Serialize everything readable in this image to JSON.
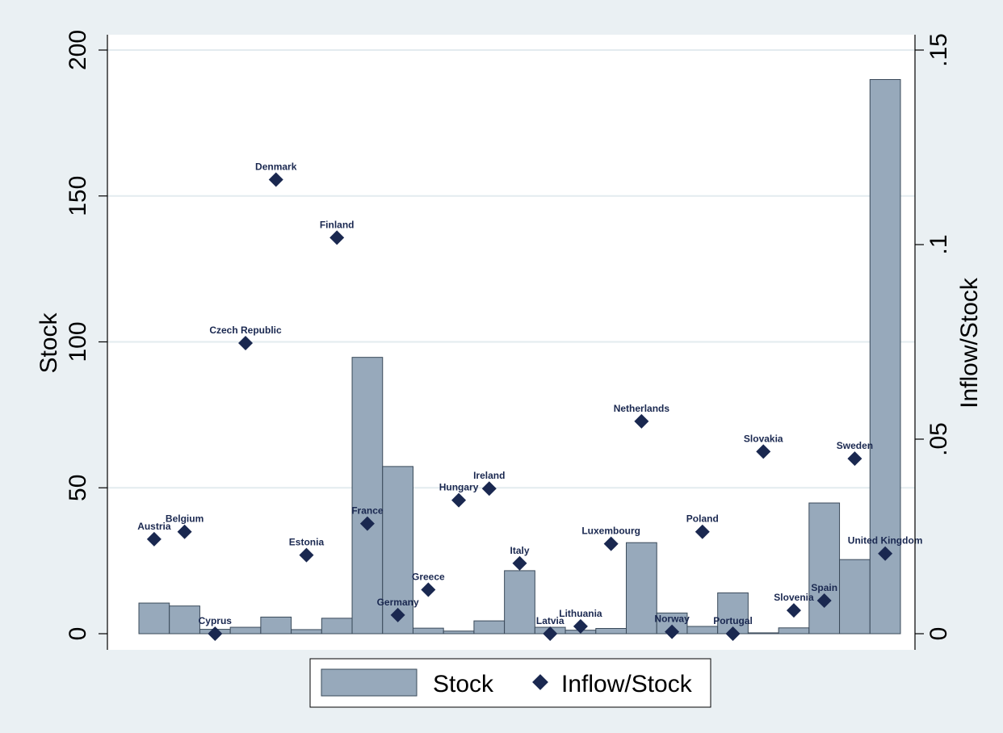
{
  "chart_data": {
    "type": "bar",
    "categories": [
      "Austria",
      "Belgium",
      "Cyprus",
      "Czech Republic",
      "Denmark",
      "Estonia",
      "Finland",
      "France",
      "Germany",
      "Greece",
      "Hungary",
      "Ireland",
      "Italy",
      "Latvia",
      "Lithuania",
      "Luxembourg",
      "Netherlands",
      "Norway",
      "Poland",
      "Portugal",
      "Slovakia",
      "Slovenia",
      "Spain",
      "Sweden",
      "United Kingdom"
    ],
    "y_left": {
      "label": "Stock",
      "ylim": [
        0,
        200
      ],
      "ticks": [
        0,
        50,
        100,
        150,
        200
      ],
      "tick_labels": [
        "0",
        "50",
        "100",
        "150",
        "200"
      ]
    },
    "y_right": {
      "label": "Inflow/Stock",
      "ylim": [
        0,
        0.15
      ],
      "ticks": [
        0,
        0.05,
        0.1,
        0.15
      ],
      "tick_labels": [
        "0",
        ".05",
        ".1",
        ".15"
      ]
    },
    "series": [
      {
        "name": "Stock",
        "type": "bar",
        "axis": "left",
        "color": "#97a9bb",
        "values": [
          10.5,
          9.5,
          1.5,
          2.2,
          5.7,
          1.4,
          5.3,
          94.7,
          57.3,
          1.9,
          0.9,
          4.4,
          21.6,
          2.2,
          1.2,
          1.8,
          31.2,
          7.1,
          2.5,
          14.0,
          0.3,
          2.0,
          44.8,
          25.4,
          189.9
        ]
      },
      {
        "name": "Inflow/Stock",
        "type": "scatter",
        "axis": "right",
        "color": "#1a2850",
        "values": [
          0.0243,
          0.0262,
          0.0,
          0.0747,
          0.1167,
          0.0202,
          0.1018,
          0.0283,
          0.0048,
          0.0113,
          0.0343,
          0.0373,
          0.0181,
          0.0,
          0.0019,
          0.0231,
          0.0546,
          0.0005,
          0.0262,
          0.0,
          0.0468,
          0.006,
          0.0085,
          0.045,
          0.0206
        ]
      }
    ],
    "legend": {
      "position": "bottom",
      "entries": [
        "Stock",
        "Inflow/Stock"
      ]
    },
    "grid": true
  }
}
